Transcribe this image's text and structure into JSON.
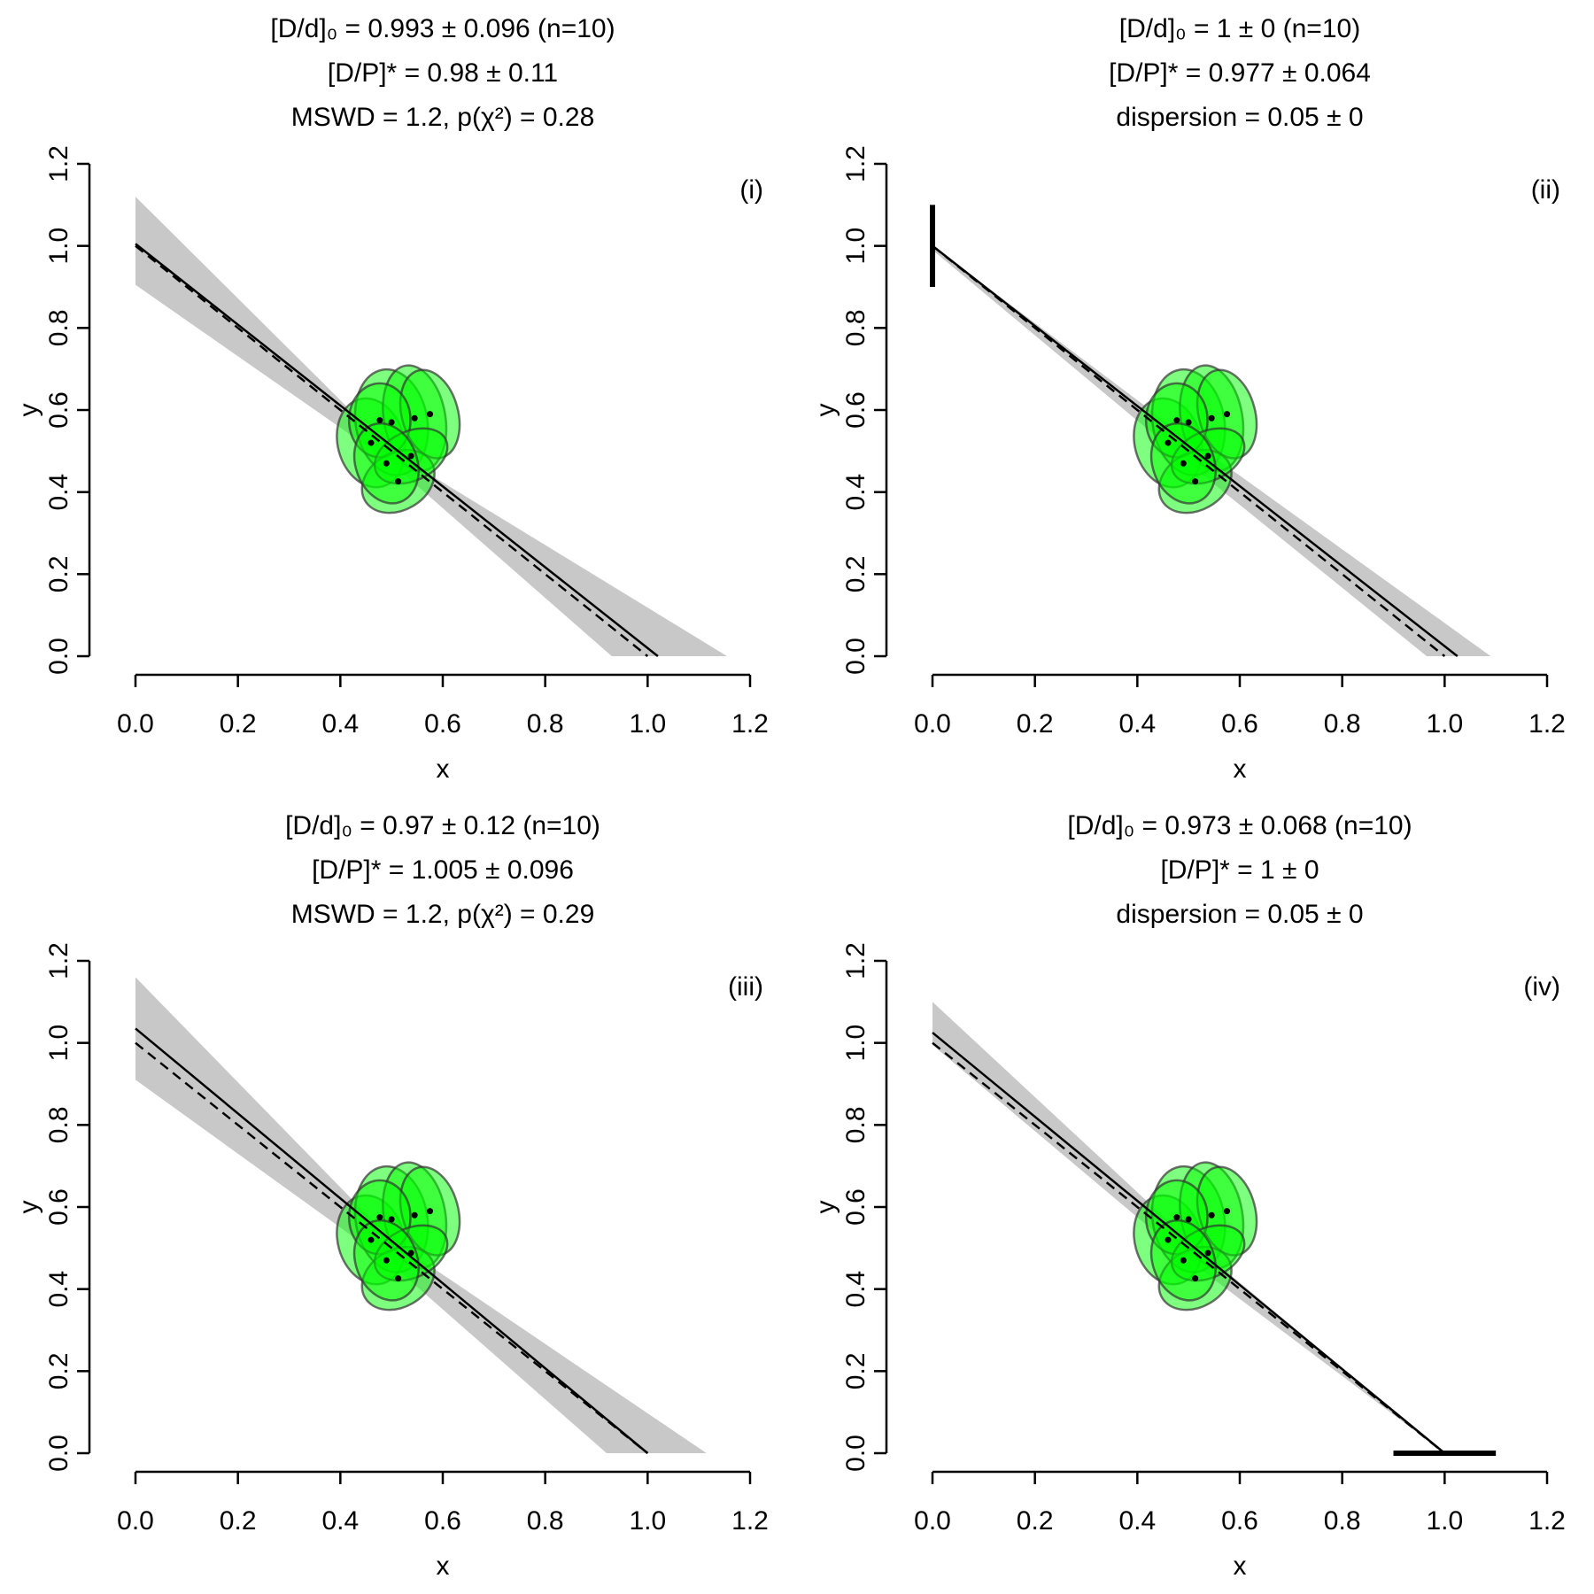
{
  "chart_data": [
    {
      "type": "scatter",
      "title": [
        "[D/d]₀ = 0.993 ± 0.096 (n=10)",
        "[D/P]* = 0.98 ± 0.11",
        "MSWD = 1.2, p(χ²) = 0.28"
      ],
      "panel_label": "(i)",
      "xlabel": "x",
      "ylabel": "y",
      "xlim": [
        0,
        1.2
      ],
      "ylim": [
        0,
        1.2
      ],
      "xticks": [
        {
          "value": 0,
          "label": "0.0"
        },
        0.2,
        0.4,
        0.6,
        0.8,
        {
          "value": 1,
          "label": "1.0"
        },
        1.2
      ],
      "yticks": [
        {
          "value": 0,
          "label": "0.0"
        },
        0.2,
        0.4,
        0.6,
        0.8,
        {
          "value": 1,
          "label": "1.0"
        },
        1.2
      ],
      "x": [
        0.46,
        0.5,
        0.545,
        0.575,
        0.477,
        0.513,
        0.538,
        0.49
      ],
      "y": [
        0.52,
        0.57,
        0.58,
        0.59,
        0.575,
        0.426,
        0.488,
        0.47
      ],
      "sx": [
        0.065,
        0.07,
        0.06,
        0.055,
        0.06,
        0.075,
        0.075,
        0.06
      ],
      "sy": [
        0.11,
        0.13,
        0.13,
        0.11,
        0.09,
        0.07,
        0.06,
        0.1
      ],
      "angle": [
        -15,
        -10,
        -10,
        -15,
        0,
        -30,
        -25,
        -20
      ],
      "color": "#00ff00",
      "fit": {
        "x": [
          0,
          1.02
        ],
        "y": [
          1.005,
          0
        ]
      },
      "reference": {
        "x": [
          0,
          1
        ],
        "y": [
          1,
          0
        ]
      },
      "band": {
        "x_upper": [
          0,
          0.5,
          1.155
        ],
        "upper": [
          1.12,
          0.5,
          0
        ],
        "x_lower": [
          0,
          0.5,
          0.93
        ],
        "lower": [
          0.905,
          0.47,
          0
        ]
      }
    },
    {
      "type": "scatter",
      "title": [
        "[D/d]₀ = 1 ± 0 (n=10)",
        "[D/P]* = 0.977 ± 0.064",
        "dispersion = 0.05 ± 0"
      ],
      "panel_label": "(ii)",
      "xlabel": "x",
      "ylabel": "y",
      "xlim": [
        0,
        1.2
      ],
      "ylim": [
        0,
        1.2
      ],
      "xticks": [
        {
          "value": 0,
          "label": "0.0"
        },
        0.2,
        0.4,
        0.6,
        0.8,
        {
          "value": 1,
          "label": "1.0"
        },
        1.2
      ],
      "yticks": [
        {
          "value": 0,
          "label": "0.0"
        },
        0.2,
        0.4,
        0.6,
        0.8,
        {
          "value": 1,
          "label": "1.0"
        },
        1.2
      ],
      "x": [
        0.46,
        0.5,
        0.545,
        0.575,
        0.477,
        0.513,
        0.538,
        0.49
      ],
      "y": [
        0.52,
        0.57,
        0.58,
        0.59,
        0.575,
        0.426,
        0.488,
        0.47
      ],
      "sx": [
        0.065,
        0.07,
        0.06,
        0.055,
        0.06,
        0.075,
        0.075,
        0.06
      ],
      "sy": [
        0.11,
        0.13,
        0.13,
        0.11,
        0.09,
        0.07,
        0.06,
        0.1
      ],
      "angle": [
        -15,
        -10,
        -10,
        -15,
        0,
        -30,
        -25,
        -20
      ],
      "color": "#00ff00",
      "fit": {
        "x": [
          0,
          1.025
        ],
        "y": [
          1,
          0
        ]
      },
      "reference": {
        "x": [
          0,
          1
        ],
        "y": [
          1,
          0
        ]
      },
      "band": {
        "x_upper": [
          0,
          0.5,
          1.09
        ],
        "upper": [
          1,
          0.53,
          0
        ],
        "x_lower": [
          0,
          0.5,
          0.965
        ],
        "lower": [
          0.99,
          0.47,
          0
        ]
      },
      "error_bar": {
        "x": [
          0,
          0
        ],
        "y": [
          0.9,
          1.1
        ]
      }
    },
    {
      "type": "scatter",
      "title": [
        "[D/d]₀ = 0.97 ± 0.12 (n=10)",
        "[D/P]* = 1.005 ± 0.096",
        "MSWD = 1.2, p(χ²) = 0.29"
      ],
      "panel_label": "(iii)",
      "xlabel": "x",
      "ylabel": "y",
      "xlim": [
        0,
        1.2
      ],
      "ylim": [
        0,
        1.2
      ],
      "xticks": [
        {
          "value": 0,
          "label": "0.0"
        },
        0.2,
        0.4,
        0.6,
        0.8,
        {
          "value": 1,
          "label": "1.0"
        },
        1.2
      ],
      "yticks": [
        {
          "value": 0,
          "label": "0.0"
        },
        0.2,
        0.4,
        0.6,
        0.8,
        {
          "value": 1,
          "label": "1.0"
        },
        1.2
      ],
      "x": [
        0.46,
        0.5,
        0.545,
        0.575,
        0.477,
        0.513,
        0.538,
        0.49
      ],
      "y": [
        0.52,
        0.57,
        0.58,
        0.59,
        0.575,
        0.426,
        0.488,
        0.47
      ],
      "sx": [
        0.065,
        0.07,
        0.06,
        0.055,
        0.06,
        0.075,
        0.075,
        0.06
      ],
      "sy": [
        0.11,
        0.13,
        0.13,
        0.11,
        0.09,
        0.07,
        0.06,
        0.1
      ],
      "angle": [
        -15,
        -10,
        -10,
        -15,
        0,
        -30,
        -25,
        -20
      ],
      "color": "#00ff00",
      "fit": {
        "x": [
          0,
          1
        ],
        "y": [
          1.035,
          0
        ]
      },
      "reference": {
        "x": [
          0,
          1
        ],
        "y": [
          1,
          0
        ]
      },
      "band": {
        "x_upper": [
          0,
          0.5,
          1.115
        ],
        "upper": [
          1.16,
          0.52,
          0
        ],
        "x_lower": [
          0,
          0.5,
          0.92
        ],
        "lower": [
          0.91,
          0.46,
          0
        ]
      }
    },
    {
      "type": "scatter",
      "title": [
        "[D/d]₀ = 0.973 ± 0.068 (n=10)",
        "[D/P]* = 1 ± 0",
        "dispersion = 0.05 ± 0"
      ],
      "panel_label": "(iv)",
      "xlabel": "x",
      "ylabel": "y",
      "xlim": [
        0,
        1.2
      ],
      "ylim": [
        0,
        1.2
      ],
      "xticks": [
        {
          "value": 0,
          "label": "0.0"
        },
        0.2,
        0.4,
        0.6,
        0.8,
        {
          "value": 1,
          "label": "1.0"
        },
        1.2
      ],
      "yticks": [
        {
          "value": 0,
          "label": "0.0"
        },
        0.2,
        0.4,
        0.6,
        0.8,
        {
          "value": 1,
          "label": "1.0"
        },
        1.2
      ],
      "x": [
        0.46,
        0.5,
        0.545,
        0.575,
        0.477,
        0.513,
        0.538,
        0.49
      ],
      "y": [
        0.52,
        0.57,
        0.58,
        0.59,
        0.575,
        0.426,
        0.488,
        0.47
      ],
      "sx": [
        0.065,
        0.07,
        0.06,
        0.055,
        0.06,
        0.075,
        0.075,
        0.06
      ],
      "sy": [
        0.11,
        0.13,
        0.13,
        0.11,
        0.09,
        0.07,
        0.06,
        0.1
      ],
      "angle": [
        -15,
        -10,
        -10,
        -15,
        0,
        -30,
        -25,
        -20
      ],
      "color": "#00ff00",
      "fit": {
        "x": [
          0,
          1
        ],
        "y": [
          1.025,
          0
        ]
      },
      "reference": {
        "x": [
          0,
          1
        ],
        "y": [
          1,
          0
        ]
      },
      "band": {
        "x_upper": [
          0,
          0.5,
          1
        ],
        "upper": [
          1.1,
          0.52,
          0
        ],
        "x_lower": [
          0,
          0.5,
          1
        ],
        "lower": [
          0.995,
          0.47,
          0
        ]
      },
      "error_bar": {
        "x": [
          0.9,
          1.1
        ],
        "y": [
          0,
          0
        ]
      }
    }
  ]
}
